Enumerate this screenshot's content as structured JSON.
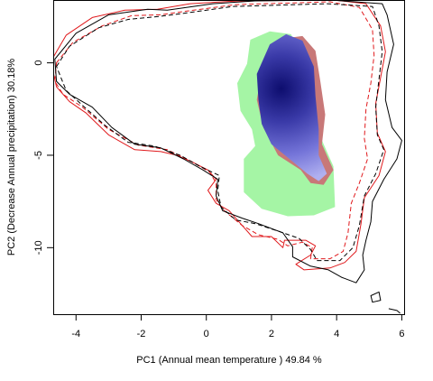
{
  "chart_data": {
    "type": "contour",
    "title": "",
    "xlabel": "PC1 (Annual mean temperature ) 49.84 %",
    "ylabel": "PC2 (Decrease Annual precipitation) 30.18%",
    "xlim": [
      -4.7,
      6.1
    ],
    "ylim": [
      -13.6,
      3.4
    ],
    "xticks": [
      -4,
      -2,
      0,
      2,
      4,
      6
    ],
    "yticks": [
      0,
      -5,
      -10
    ],
    "grid": false,
    "legend": "none",
    "colors": {
      "red": "#e0191c",
      "black": "#000000",
      "green": "#a5f5a5",
      "salmon": "#c87878",
      "blue_light": "#a8a8f2",
      "blue_mid": "#6666d8",
      "blue_dark": "#0d0d6e"
    },
    "series": [
      {
        "kind": "raster",
        "color": "green",
        "region": [
          [
            1.25,
            -0.05
          ],
          [
            1.35,
            1.25
          ],
          [
            1.95,
            1.7
          ],
          [
            2.6,
            1.55
          ],
          [
            2.85,
            0.6
          ],
          [
            2.95,
            -1.4
          ],
          [
            3.4,
            -3.6
          ],
          [
            3.9,
            -5.6
          ],
          [
            3.95,
            -7.8
          ],
          [
            3.3,
            -8.25
          ],
          [
            2.5,
            -8.3
          ],
          [
            1.7,
            -7.9
          ],
          [
            1.15,
            -7.0
          ],
          [
            1.15,
            -5.2
          ],
          [
            1.5,
            -4.5
          ],
          [
            1.4,
            -3.6
          ],
          [
            1.05,
            -2.6
          ],
          [
            0.95,
            -1.1
          ]
        ]
      },
      {
        "kind": "raster",
        "color": "salmon",
        "region": [
          [
            1.7,
            -0.5
          ],
          [
            2.3,
            1.3
          ],
          [
            2.95,
            1.45
          ],
          [
            3.35,
            0.65
          ],
          [
            3.5,
            -1.0
          ],
          [
            3.65,
            -2.8
          ],
          [
            3.55,
            -4.4
          ],
          [
            3.9,
            -5.8
          ],
          [
            3.6,
            -6.6
          ],
          [
            3.2,
            -6.5
          ],
          [
            2.9,
            -5.8
          ],
          [
            2.2,
            -5.0
          ],
          [
            1.75,
            -3.5
          ],
          [
            1.55,
            -2.0
          ]
        ]
      },
      {
        "kind": "density",
        "color": "blue",
        "center": [
          2.3,
          -1.4
        ],
        "region": [
          [
            1.55,
            -0.6
          ],
          [
            1.95,
            1.0
          ],
          [
            2.45,
            1.55
          ],
          [
            2.95,
            1.2
          ],
          [
            3.3,
            -0.2
          ],
          [
            3.35,
            -1.8
          ],
          [
            3.45,
            -3.6
          ],
          [
            3.45,
            -5.0
          ],
          [
            3.7,
            -6.0
          ],
          [
            3.45,
            -6.4
          ],
          [
            3.1,
            -6.0
          ],
          [
            2.55,
            -5.2
          ],
          [
            2.0,
            -4.4
          ],
          [
            1.7,
            -3.3
          ],
          [
            1.6,
            -2.0
          ]
        ]
      },
      {
        "kind": "contour",
        "color": "red",
        "dash": "solid",
        "points": [
          [
            -4.7,
            0.3
          ],
          [
            -4.3,
            1.5
          ],
          [
            -3.5,
            2.45
          ],
          [
            -2.5,
            2.85
          ],
          [
            -1.5,
            2.9
          ],
          [
            -0.5,
            3.2
          ],
          [
            1.0,
            3.35
          ],
          [
            3.9,
            3.4
          ],
          [
            4.9,
            3.2
          ],
          [
            5.35,
            2.0
          ],
          [
            5.5,
            0.6
          ],
          [
            5.35,
            -0.8
          ],
          [
            5.2,
            -2.2
          ],
          [
            5.25,
            -3.8
          ],
          [
            5.5,
            -4.8
          ],
          [
            5.3,
            -6.1
          ],
          [
            4.85,
            -7.3
          ],
          [
            4.75,
            -8.7
          ],
          [
            4.6,
            -10.2
          ],
          [
            4.25,
            -10.8
          ],
          [
            3.8,
            -11.1
          ],
          [
            3.0,
            -11.2
          ],
          [
            2.75,
            -10.9
          ],
          [
            3.2,
            -10.4
          ],
          [
            3.35,
            -9.9
          ],
          [
            3.05,
            -9.6
          ],
          [
            2.4,
            -9.6
          ],
          [
            2.35,
            -10.0
          ],
          [
            2.0,
            -9.4
          ],
          [
            1.4,
            -9.4
          ],
          [
            1.2,
            -9.0
          ],
          [
            1.0,
            -8.6
          ],
          [
            0.7,
            -8.0
          ],
          [
            0.3,
            -7.6
          ],
          [
            0.05,
            -6.9
          ],
          [
            0.3,
            -6.3
          ],
          [
            0.05,
            -5.8
          ],
          [
            -0.4,
            -5.4
          ],
          [
            -0.9,
            -5.0
          ],
          [
            -1.4,
            -4.8
          ],
          [
            -2.2,
            -4.7
          ],
          [
            -3.0,
            -3.9
          ],
          [
            -3.7,
            -2.7
          ],
          [
            -4.2,
            -2.1
          ],
          [
            -4.6,
            -1.3
          ],
          [
            -4.7,
            -0.5
          ]
        ]
      },
      {
        "kind": "contour",
        "color": "red",
        "dash": "dashed",
        "points": [
          [
            -4.6,
            0.0
          ],
          [
            -4.1,
            1.1
          ],
          [
            -3.2,
            2.0
          ],
          [
            -2.3,
            2.55
          ],
          [
            -1.4,
            2.6
          ],
          [
            -0.6,
            2.8
          ],
          [
            0.9,
            3.15
          ],
          [
            3.8,
            3.3
          ],
          [
            4.7,
            3.0
          ],
          [
            5.1,
            1.8
          ],
          [
            5.15,
            0.4
          ],
          [
            5.05,
            -1.1
          ],
          [
            4.9,
            -2.5
          ],
          [
            4.85,
            -4.1
          ],
          [
            4.95,
            -5.2
          ],
          [
            4.7,
            -6.5
          ],
          [
            4.45,
            -7.6
          ],
          [
            4.35,
            -9.2
          ],
          [
            4.2,
            -10.2
          ],
          [
            3.8,
            -10.6
          ],
          [
            3.2,
            -10.6
          ],
          [
            3.25,
            -10.0
          ],
          [
            2.95,
            -9.7
          ],
          [
            2.5,
            -9.9
          ],
          [
            2.2,
            -9.55
          ],
          [
            1.6,
            -9.3
          ],
          [
            1.1,
            -8.8
          ],
          [
            0.55,
            -8.0
          ],
          [
            0.3,
            -7.4
          ],
          [
            0.3,
            -6.5
          ],
          [
            0.1,
            -5.9
          ],
          [
            -0.5,
            -5.3
          ],
          [
            -1.2,
            -4.7
          ],
          [
            -2.1,
            -4.45
          ],
          [
            -3.0,
            -3.6
          ],
          [
            -3.8,
            -2.4
          ],
          [
            -4.4,
            -1.7
          ],
          [
            -4.65,
            -1.0
          ]
        ]
      },
      {
        "kind": "contour",
        "color": "black",
        "dash": "solid",
        "points": [
          [
            -4.65,
            0.2
          ],
          [
            -4.0,
            1.6
          ],
          [
            -3.0,
            2.6
          ],
          [
            -1.8,
            2.9
          ],
          [
            -1.2,
            2.85
          ],
          [
            0.2,
            3.2
          ],
          [
            1.5,
            3.35
          ],
          [
            3.8,
            3.4
          ],
          [
            5.4,
            3.2
          ],
          [
            5.55,
            2.6
          ],
          [
            5.75,
            1.0
          ],
          [
            5.55,
            -0.5
          ],
          [
            5.5,
            -2.0
          ],
          [
            5.7,
            -3.5
          ],
          [
            6.0,
            -4.2
          ],
          [
            5.85,
            -5.2
          ],
          [
            5.45,
            -6.3
          ],
          [
            5.1,
            -7.5
          ],
          [
            5.05,
            -8.6
          ],
          [
            4.9,
            -9.6
          ],
          [
            4.8,
            -10.4
          ],
          [
            4.85,
            -11.2
          ],
          [
            4.6,
            -11.9
          ],
          [
            4.15,
            -11.6
          ],
          [
            3.75,
            -11.2
          ],
          [
            3.2,
            -11.0
          ],
          [
            2.65,
            -10.5
          ],
          [
            2.65,
            -9.95
          ],
          [
            2.35,
            -9.2
          ],
          [
            1.6,
            -8.7
          ],
          [
            1.1,
            -8.4
          ],
          [
            0.5,
            -8.0
          ],
          [
            0.3,
            -7.2
          ],
          [
            0.35,
            -6.3
          ],
          [
            -0.1,
            -5.8
          ],
          [
            -0.7,
            -5.2
          ],
          [
            -1.4,
            -4.6
          ],
          [
            -2.2,
            -4.4
          ],
          [
            -2.9,
            -3.5
          ],
          [
            -3.5,
            -2.4
          ],
          [
            -4.2,
            -1.7
          ],
          [
            -4.6,
            -1.0
          ]
        ]
      },
      {
        "kind": "contour",
        "color": "black",
        "dash": "dashed",
        "points": [
          [
            -4.6,
            -0.2
          ],
          [
            -4.2,
            0.9
          ],
          [
            -3.3,
            1.9
          ],
          [
            -2.4,
            2.35
          ],
          [
            -1.5,
            2.5
          ],
          [
            -0.6,
            2.7
          ],
          [
            0.8,
            3.05
          ],
          [
            3.7,
            3.2
          ],
          [
            5.1,
            3.05
          ],
          [
            5.3,
            2.0
          ],
          [
            5.4,
            0.6
          ],
          [
            5.3,
            -0.9
          ],
          [
            5.2,
            -2.4
          ],
          [
            5.25,
            -3.9
          ],
          [
            5.45,
            -4.7
          ],
          [
            5.2,
            -6.0
          ],
          [
            4.85,
            -7.2
          ],
          [
            4.7,
            -8.8
          ],
          [
            4.5,
            -10.0
          ],
          [
            4.1,
            -10.7
          ],
          [
            3.4,
            -10.7
          ],
          [
            3.2,
            -10.1
          ],
          [
            2.85,
            -9.5
          ],
          [
            2.2,
            -9.1
          ],
          [
            1.5,
            -8.7
          ],
          [
            0.9,
            -8.5
          ],
          [
            0.45,
            -7.8
          ],
          [
            0.35,
            -6.9
          ],
          [
            0.4,
            -6.1
          ],
          [
            -0.2,
            -5.6
          ],
          [
            -0.8,
            -5.0
          ],
          [
            -1.6,
            -4.5
          ],
          [
            -2.4,
            -4.3
          ],
          [
            -3.1,
            -3.4
          ],
          [
            -3.8,
            -2.3
          ],
          [
            -4.3,
            -1.5
          ]
        ]
      },
      {
        "kind": "contour",
        "color": "black",
        "dash": "solid",
        "points": [
          [
            5.05,
            -12.6
          ],
          [
            5.3,
            -12.4
          ],
          [
            5.35,
            -12.85
          ],
          [
            5.1,
            -12.95
          ]
        ]
      },
      {
        "kind": "contour",
        "color": "black",
        "dash": "solid",
        "points": [
          [
            5.6,
            -13.3
          ],
          [
            5.85,
            -13.4
          ],
          [
            5.95,
            -13.55
          ]
        ]
      }
    ]
  }
}
